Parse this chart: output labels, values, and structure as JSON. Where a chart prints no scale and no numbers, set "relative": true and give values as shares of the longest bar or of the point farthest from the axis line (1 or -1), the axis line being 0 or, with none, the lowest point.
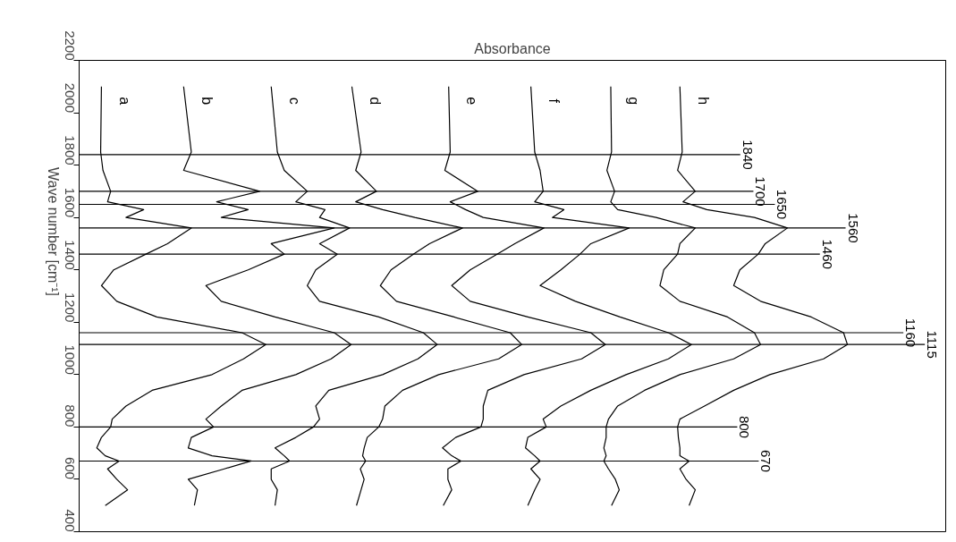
{
  "chart_data": {
    "type": "line",
    "orientation": "horizontal",
    "xlabel": "Absorbance",
    "ylabel": "Wave number [cm⁻¹]",
    "relative": true,
    "tick_labels": "y",
    "grid": false,
    "legend": false,
    "ylim": [
      400,
      2200
    ],
    "yticks": [
      2200,
      2000,
      1800,
      1600,
      1400,
      1200,
      1000,
      800,
      600,
      400
    ],
    "x": [
      2100,
      1850,
      1780,
      1700,
      1660,
      1630,
      1600,
      1560,
      1500,
      1460,
      1400,
      1340,
      1280,
      1220,
      1160,
      1115,
      1060,
      1000,
      940,
      880,
      830,
      800,
      760,
      720,
      690,
      670,
      640,
      600,
      560,
      500
    ],
    "series": [
      {
        "name": "a",
        "color": "#000000",
        "values": [
          0.029,
          0.028,
          0.031,
          0.041,
          0.037,
          0.084,
          0.061,
          0.146,
          0.115,
          0.087,
          0.045,
          0.029,
          0.049,
          0.101,
          0.212,
          0.243,
          0.214,
          0.173,
          0.095,
          0.061,
          0.043,
          0.041,
          0.029,
          0.023,
          0.034,
          0.052,
          0.037,
          0.049,
          0.063,
          0.034
        ]
      },
      {
        "name": "b",
        "color": "#000000",
        "values": [
          0.136,
          0.146,
          0.136,
          0.235,
          0.179,
          0.22,
          0.185,
          0.332,
          0.25,
          0.267,
          0.22,
          0.165,
          0.185,
          0.255,
          0.332,
          0.354,
          0.328,
          0.282,
          0.212,
          0.185,
          0.165,
          0.175,
          0.146,
          0.142,
          0.173,
          0.224,
          0.189,
          0.142,
          0.154,
          0.15
        ]
      },
      {
        "name": "c",
        "color": "#000000",
        "values": [
          0.25,
          0.258,
          0.267,
          0.297,
          0.282,
          0.32,
          0.313,
          0.352,
          0.313,
          0.336,
          0.308,
          0.297,
          0.313,
          0.39,
          0.448,
          0.466,
          0.441,
          0.395,
          0.325,
          0.308,
          0.313,
          0.305,
          0.282,
          0.255,
          0.267,
          0.274,
          0.25,
          0.25,
          0.258,
          0.255
        ]
      },
      {
        "name": "d",
        "color": "#000000",
        "values": [
          0.355,
          0.367,
          0.36,
          0.387,
          0.36,
          0.395,
          0.437,
          0.499,
          0.456,
          0.435,
          0.406,
          0.392,
          0.413,
          0.488,
          0.561,
          0.576,
          0.546,
          0.468,
          0.421,
          0.398,
          0.395,
          0.39,
          0.375,
          0.371,
          0.369,
          0.373,
          0.366,
          0.371,
          0.367,
          0.361
        ]
      },
      {
        "name": "e",
        "color": "#000000",
        "values": [
          0.481,
          0.483,
          0.476,
          0.519,
          0.483,
          0.503,
          0.526,
          0.605,
          0.567,
          0.544,
          0.509,
          0.485,
          0.509,
          0.584,
          0.666,
          0.685,
          0.654,
          0.579,
          0.532,
          0.526,
          0.526,
          0.523,
          0.49,
          0.473,
          0.485,
          0.497,
          0.48,
          0.48,
          0.485,
          0.474
        ]
      },
      {
        "name": "f",
        "color": "#000000",
        "values": [
          0.588,
          0.593,
          0.6,
          0.604,
          0.593,
          0.631,
          0.616,
          0.716,
          0.666,
          0.652,
          0.627,
          0.6,
          0.646,
          0.704,
          0.767,
          0.797,
          0.767,
          0.712,
          0.666,
          0.627,
          0.604,
          0.608,
          0.584,
          0.581,
          0.593,
          0.6,
          0.588,
          0.6,
          0.593,
          0.584
        ]
      },
      {
        "name": "g",
        "color": "#000000",
        "values": [
          0.692,
          0.693,
          0.687,
          0.697,
          0.692,
          0.701,
          0.751,
          0.802,
          0.782,
          0.779,
          0.761,
          0.756,
          0.782,
          0.844,
          0.879,
          0.887,
          0.852,
          0.782,
          0.736,
          0.701,
          0.689,
          0.686,
          0.686,
          0.683,
          0.686,
          0.683,
          0.689,
          0.698,
          0.703,
          0.693
        ]
      },
      {
        "name": "h",
        "color": "#000000",
        "values": [
          0.782,
          0.785,
          0.779,
          0.802,
          0.786,
          0.817,
          0.879,
          0.922,
          0.893,
          0.884,
          0.86,
          0.852,
          0.887,
          0.953,
          0.995,
          1.0,
          0.969,
          0.899,
          0.852,
          0.814,
          0.782,
          0.779,
          0.78,
          0.782,
          0.782,
          0.794,
          0.782,
          0.79,
          0.802,
          0.794
        ]
      }
    ],
    "ref_lines": [
      {
        "axis": "y",
        "value": 1840,
        "label": "1840"
      },
      {
        "axis": "y",
        "value": 1700,
        "label": "1700"
      },
      {
        "axis": "y",
        "value": 1650,
        "label": "1650"
      },
      {
        "axis": "y",
        "value": 1560,
        "label": "1560"
      },
      {
        "axis": "y",
        "value": 1460,
        "label": "1460"
      },
      {
        "axis": "y",
        "value": 1160,
        "label": "1160"
      },
      {
        "axis": "y",
        "value": 1115,
        "label": "1115"
      },
      {
        "axis": "y",
        "value": 800,
        "label": "800"
      },
      {
        "axis": "y",
        "value": 670,
        "label": "670"
      }
    ]
  }
}
